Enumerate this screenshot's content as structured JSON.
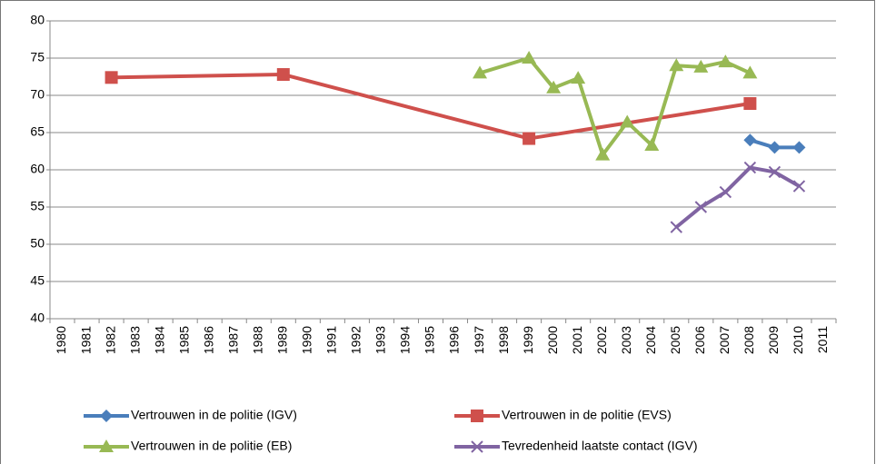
{
  "chart_data": {
    "type": "line",
    "categories": [
      "1980",
      "1981",
      "1982",
      "1983",
      "1984",
      "1985",
      "1986",
      "1987",
      "1988",
      "1989",
      "1990",
      "1991",
      "1992",
      "1993",
      "1994",
      "1995",
      "1996",
      "1997",
      "1998",
      "1999",
      "2000",
      "2001",
      "2002",
      "2003",
      "2004",
      "2005",
      "2006",
      "2007",
      "2008",
      "2009",
      "2010",
      "2011"
    ],
    "series": [
      {
        "name": "Vertrouwen in de politie (IGV)",
        "color": "#4a7ebb",
        "marker": "diamond",
        "values": [
          null,
          null,
          null,
          null,
          null,
          null,
          null,
          null,
          null,
          null,
          null,
          null,
          null,
          null,
          null,
          null,
          null,
          null,
          null,
          null,
          null,
          null,
          null,
          null,
          null,
          null,
          null,
          null,
          64,
          63,
          63,
          null
        ]
      },
      {
        "name": "Vertrouwen in de politie (EVS)",
        "color": "#cf504c",
        "marker": "square",
        "values": [
          null,
          null,
          72.4,
          null,
          null,
          null,
          null,
          null,
          null,
          72.8,
          null,
          null,
          null,
          null,
          null,
          null,
          null,
          null,
          null,
          64.2,
          null,
          null,
          null,
          null,
          null,
          null,
          null,
          null,
          68.9,
          null,
          null,
          null
        ]
      },
      {
        "name": "Vertrouwen in de politie (EB)",
        "color": "#98b954",
        "marker": "triangle",
        "values": [
          null,
          null,
          null,
          null,
          null,
          null,
          null,
          null,
          null,
          null,
          null,
          null,
          null,
          null,
          null,
          null,
          null,
          73,
          null,
          75,
          71,
          72.3,
          62,
          66.4,
          63.3,
          74,
          73.8,
          74.5,
          73,
          null,
          null,
          null
        ]
      },
      {
        "name": "Tevredenheid laatste contact (IGV)",
        "color": "#8064a2",
        "marker": "x",
        "values": [
          null,
          null,
          null,
          null,
          null,
          null,
          null,
          null,
          null,
          null,
          null,
          null,
          null,
          null,
          null,
          null,
          null,
          null,
          null,
          null,
          null,
          null,
          null,
          null,
          null,
          52.3,
          55,
          57,
          60.3,
          59.7,
          57.8,
          null
        ]
      }
    ],
    "ylim": [
      40,
      80
    ],
    "yticks": [
      40,
      45,
      50,
      55,
      60,
      65,
      70,
      75,
      80
    ],
    "grid": true,
    "connect_gaps": true,
    "legend": "bottom"
  }
}
